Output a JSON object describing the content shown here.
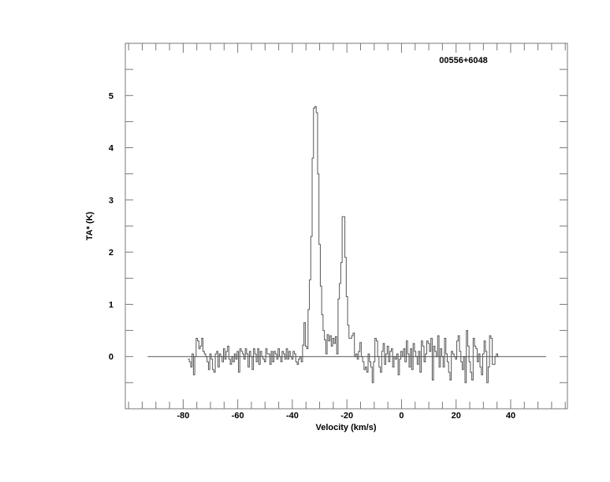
{
  "chart_data": {
    "type": "line",
    "style": "step",
    "title": "00556+6048",
    "xlabel": "Velocity (km/s)",
    "ylabel": "TA* (K)",
    "xlim": [
      -101.2,
      60.8
    ],
    "ylim": [
      -1,
      6
    ],
    "xticks": [
      -80,
      -60,
      -40,
      -20,
      0,
      20,
      40
    ],
    "xtick_labels": [
      "-80",
      "-60",
      "-40",
      "-20",
      "0",
      "20",
      "40"
    ],
    "xminor_step": 5,
    "yticks": [
      0,
      1,
      2,
      3,
      4,
      5
    ],
    "ytick_labels": [
      "0",
      "1",
      "2",
      "3",
      "4",
      "5"
    ],
    "yminor_step": 0.5,
    "grid": false,
    "baseline": {
      "y": 0,
      "x_range": [
        -93,
        53
      ]
    },
    "colors": {
      "frame": "#777777",
      "spectrum": "#555555",
      "baseline": "#555555"
    },
    "series": [
      {
        "x_start": -78.0,
        "channel_width": 0.5,
        "values": [
          -0.05,
          -0.1,
          -0.2,
          0.05,
          -0.35,
          0.0,
          0.35,
          0.3,
          0.15,
          0.2,
          0.35,
          0.1,
          0.05,
          0.0,
          -0.1,
          -0.25,
          0.05,
          -0.05,
          -0.25,
          -0.3,
          0.05,
          0.1,
          -0.2,
          0.05,
          0.0,
          -0.1,
          0.15,
          -0.05,
          0.1,
          0.2,
          -0.05,
          -0.15,
          0.0,
          -0.1,
          0.05,
          -0.05,
          0.1,
          -0.3,
          0.15,
          0.1,
          0.05,
          -0.05,
          0.15,
          0.05,
          -0.2,
          0.1,
          0.0,
          -0.25,
          0.15,
          0.05,
          -0.1,
          0.15,
          -0.15,
          0.1,
          0.0,
          -0.05,
          -0.1,
          0.15,
          0.05,
          0.05,
          -0.15,
          0.1,
          -0.1,
          0.1,
          0.05,
          -0.05,
          0.15,
          0.0,
          -0.1,
          0.1,
          0.05,
          -0.05,
          0.15,
          -0.05,
          0.1,
          0.0,
          -0.05,
          0.1,
          0.05,
          -0.1,
          -0.15,
          -0.05,
          0.0,
          -0.1,
          0.22,
          0.65,
          0.2,
          0.15,
          0.9,
          1.47,
          2.3,
          3.8,
          4.76,
          4.79,
          4.67,
          3.5,
          2.15,
          1.35,
          0.8,
          0.5,
          0.32,
          0.05,
          0.42,
          0.3,
          0.4,
          0.2,
          0.35,
          0.25,
          0.38,
          0.05,
          1.1,
          1.4,
          1.8,
          2.68,
          2.68,
          1.9,
          1.15,
          0.6,
          0.35,
          0.35,
          0.4,
          0.45,
          0.0,
          0.05,
          -0.05,
          0.1,
          0.27,
          0.0,
          -0.1,
          -0.25,
          -0.2,
          -0.3,
          0.05,
          -0.1,
          -0.2,
          -0.5,
          -0.1,
          0.35,
          0.3,
          0.0,
          -0.2,
          -0.3,
          0.1,
          0.25,
          -0.15,
          0.05,
          0.2,
          -0.1,
          0.1,
          0.15,
          -0.2,
          0.0,
          -0.05,
          0.05,
          -0.35,
          -0.05,
          0.1,
          0.0,
          0.15,
          -0.1,
          0.3,
          0.05,
          -0.2,
          0.15,
          -0.25,
          0.25,
          0.1,
          0.0,
          -0.15,
          0.1,
          -0.3,
          0.3,
          0.2,
          -0.1,
          0.05,
          0.3,
          0.25,
          0.1,
          0.35,
          -0.45,
          0.2,
          0.1,
          0.0,
          0.4,
          -0.2,
          0.15,
          0.0,
          -0.2,
          0.35,
          0.05,
          -0.1,
          -0.3,
          -0.45,
          0.1,
          0.05,
          0.0,
          -0.05,
          0.3,
          0.4,
          0.1,
          -0.1,
          -0.25,
          0.0,
          -0.5,
          0.5,
          0.2,
          -0.1,
          -0.3,
          -0.45,
          0.35,
          0.2,
          0.15,
          -0.1,
          0.05,
          -0.2,
          -0.35,
          0.05,
          0.3,
          0.1,
          -0.5,
          -0.2,
          0.4,
          0.35,
          -0.15,
          -0.15,
          0.0,
          0.05,
          0.0
        ]
      }
    ]
  }
}
